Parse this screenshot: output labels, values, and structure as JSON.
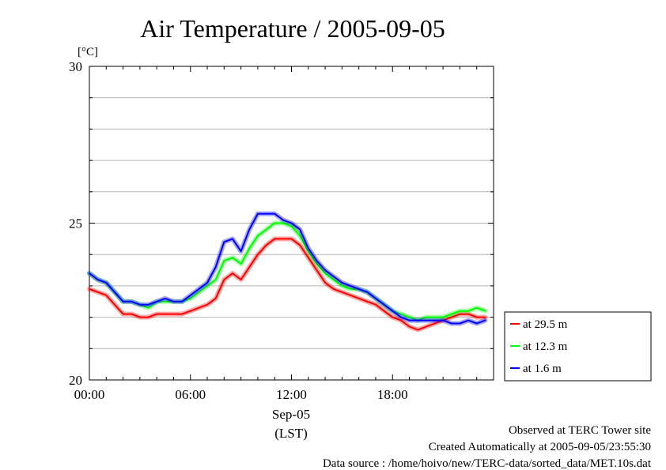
{
  "chart_data": {
    "type": "line",
    "title": "Air Temperature / 2005-09-05",
    "ylabel": "[°C]",
    "ylim": [
      20,
      30
    ],
    "xlim": [
      "2005-09-05T00:00",
      "2005-09-06T00:00"
    ],
    "xticks": [
      "00:00",
      "06:00",
      "12:00",
      "18:00"
    ],
    "yticks": [
      20,
      25,
      30
    ],
    "xlabel_date": "Sep-05",
    "xlabel_tz": "(LST)",
    "grid": true,
    "legend_position": "right",
    "series": [
      {
        "name": "at 29.5 m",
        "color": "#ff0000",
        "x": [
          "00:00",
          "00:30",
          "01:00",
          "01:30",
          "02:00",
          "02:30",
          "03:00",
          "03:30",
          "04:00",
          "04:30",
          "05:00",
          "05:30",
          "06:00",
          "06:30",
          "07:00",
          "07:30",
          "08:00",
          "08:30",
          "09:00",
          "09:30",
          "10:00",
          "10:30",
          "11:00",
          "11:30",
          "12:00",
          "12:30",
          "13:00",
          "13:30",
          "14:00",
          "14:30",
          "15:00",
          "15:30",
          "16:00",
          "16:30",
          "17:00",
          "17:30",
          "18:00",
          "18:30",
          "19:00",
          "19:30",
          "20:00",
          "20:30",
          "21:00",
          "21:30",
          "22:00",
          "22:30",
          "23:00",
          "23:30"
        ],
        "values": [
          22.9,
          22.8,
          22.7,
          22.4,
          22.1,
          22.1,
          22.0,
          22.0,
          22.1,
          22.1,
          22.1,
          22.1,
          22.2,
          22.3,
          22.4,
          22.6,
          23.2,
          23.4,
          23.2,
          23.6,
          24.0,
          24.3,
          24.5,
          24.5,
          24.5,
          24.3,
          23.9,
          23.5,
          23.1,
          22.9,
          22.8,
          22.7,
          22.6,
          22.5,
          22.4,
          22.2,
          22.0,
          21.9,
          21.7,
          21.6,
          21.7,
          21.8,
          21.9,
          22.0,
          22.1,
          22.1,
          22.0,
          22.0
        ]
      },
      {
        "name": "at 12.3 m",
        "color": "#00ff00",
        "x": [
          "00:00",
          "00:30",
          "01:00",
          "01:30",
          "02:00",
          "02:30",
          "03:00",
          "03:30",
          "04:00",
          "04:30",
          "05:00",
          "05:30",
          "06:00",
          "06:30",
          "07:00",
          "07:30",
          "08:00",
          "08:30",
          "09:00",
          "09:30",
          "10:00",
          "10:30",
          "11:00",
          "11:30",
          "12:00",
          "12:30",
          "13:00",
          "13:30",
          "14:00",
          "14:30",
          "15:00",
          "15:30",
          "16:00",
          "16:30",
          "17:00",
          "17:30",
          "18:00",
          "18:30",
          "19:00",
          "19:30",
          "20:00",
          "20:30",
          "21:00",
          "21:30",
          "22:00",
          "22:30",
          "23:00",
          "23:30"
        ],
        "values": [
          23.4,
          23.2,
          23.1,
          22.8,
          22.5,
          22.5,
          22.4,
          22.3,
          22.5,
          22.5,
          22.5,
          22.5,
          22.6,
          22.8,
          23.0,
          23.2,
          23.8,
          23.9,
          23.7,
          24.2,
          24.6,
          24.8,
          25.0,
          25.0,
          24.9,
          24.6,
          24.1,
          23.7,
          23.4,
          23.2,
          23.0,
          22.9,
          22.9,
          22.8,
          22.6,
          22.4,
          22.2,
          22.1,
          22.0,
          21.9,
          22.0,
          22.0,
          22.0,
          22.1,
          22.2,
          22.2,
          22.3,
          22.2
        ]
      },
      {
        "name": "at 1.6 m",
        "color": "#0000ff",
        "x": [
          "00:00",
          "00:30",
          "01:00",
          "01:30",
          "02:00",
          "02:30",
          "03:00",
          "03:30",
          "04:00",
          "04:30",
          "05:00",
          "05:30",
          "06:00",
          "06:30",
          "07:00",
          "07:30",
          "08:00",
          "08:30",
          "09:00",
          "09:30",
          "10:00",
          "10:30",
          "11:00",
          "11:30",
          "12:00",
          "12:30",
          "13:00",
          "13:30",
          "14:00",
          "14:30",
          "15:00",
          "15:30",
          "16:00",
          "16:30",
          "17:00",
          "17:30",
          "18:00",
          "18:30",
          "19:00",
          "19:30",
          "20:00",
          "20:30",
          "21:00",
          "21:30",
          "22:00",
          "22:30",
          "23:00",
          "23:30"
        ],
        "values": [
          23.4,
          23.2,
          23.1,
          22.8,
          22.5,
          22.5,
          22.4,
          22.4,
          22.5,
          22.6,
          22.5,
          22.5,
          22.7,
          22.9,
          23.1,
          23.6,
          24.4,
          24.5,
          24.1,
          24.8,
          25.3,
          25.3,
          25.3,
          25.1,
          25.0,
          24.8,
          24.2,
          23.8,
          23.5,
          23.3,
          23.1,
          23.0,
          22.9,
          22.8,
          22.6,
          22.4,
          22.2,
          22.0,
          21.9,
          21.9,
          21.9,
          21.9,
          21.9,
          21.8,
          21.8,
          21.9,
          21.8,
          21.9
        ]
      }
    ]
  },
  "footer": {
    "observed": "Observed at TERC Tower site",
    "created": "Created Automatically at 2005-09-05/23:55:30",
    "source": "Data source : /home/hoivo/new/TERC-data/sorted_data/MET.10s.dat"
  }
}
